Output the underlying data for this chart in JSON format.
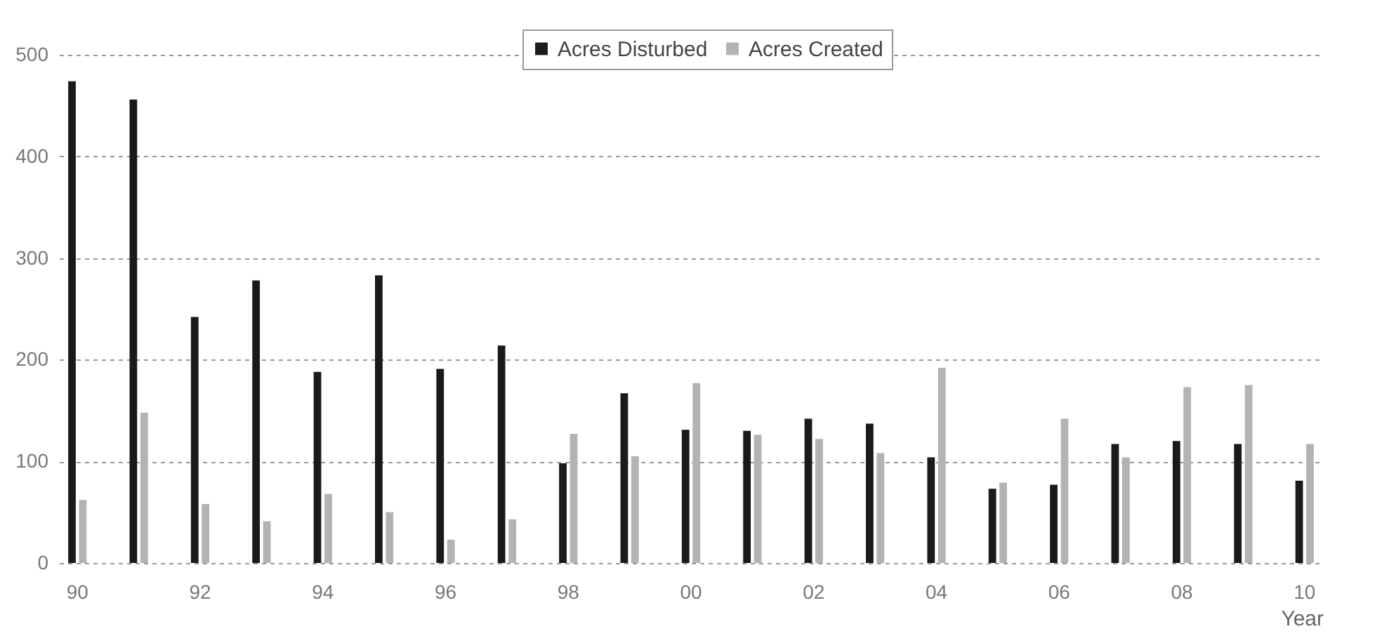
{
  "chart_data": {
    "type": "bar",
    "xlabel": "Year",
    "categories": [
      "90",
      null,
      "92",
      null,
      "94",
      null,
      "96",
      null,
      "98",
      null,
      "00",
      null,
      "02",
      null,
      "04",
      null,
      "06",
      null,
      "08",
      null,
      "10"
    ],
    "series": [
      {
        "name": "Acres Disturbed",
        "color": "#1a1a1a",
        "values": [
          474,
          456,
          242,
          278,
          188,
          283,
          191,
          214,
          98,
          167,
          131,
          130,
          142,
          137,
          104,
          73,
          77,
          117,
          120,
          117,
          81
        ]
      },
      {
        "name": "Acres Created",
        "color": "#b3b3b3",
        "values": [
          62,
          148,
          58,
          41,
          68,
          50,
          23,
          43,
          127,
          105,
          177,
          126,
          122,
          108,
          192,
          79,
          142,
          104,
          173,
          175,
          117
        ]
      }
    ],
    "ylim": [
      0,
      500
    ],
    "yticks": [
      0,
      100,
      200,
      300,
      400,
      500
    ],
    "grid": "y",
    "legend": "top"
  }
}
